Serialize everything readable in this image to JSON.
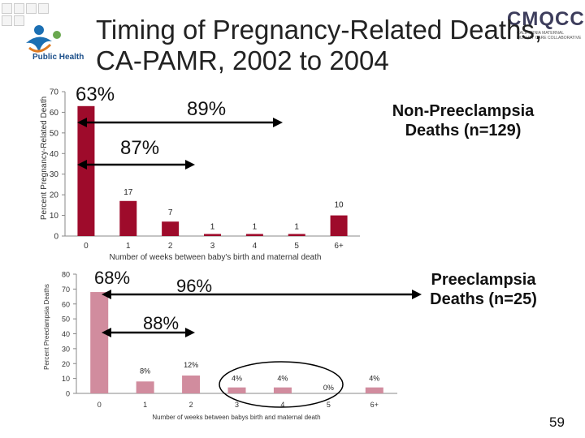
{
  "title": "Timing of Pregnancy-Related Deaths, CA-PAMR, 2002 to 2004",
  "logos": {
    "left_text": "Public Health",
    "right_text": "CMQCC",
    "right_subtext": "CALIFORNIA MATERNAL QUALITY CARE COLLABORATIVE"
  },
  "page_number": "59",
  "colors": {
    "top_bars": "#9e0b2b",
    "bottom_bars": "#d18c9e",
    "ellipse": "#000000"
  },
  "top_labels": {
    "pct_63": "63%",
    "pct_89": "89%",
    "pct_87": "87%",
    "group_title": "Non-Preeclampsia Deaths (n=129)"
  },
  "bottom_labels": {
    "pct_68": "68%",
    "pct_96": "96%",
    "pct_88": "88%",
    "group_title": "Preeclampsia Deaths (n=25)"
  },
  "chart_data": [
    {
      "type": "bar",
      "name": "non-preeclampsia",
      "categories": [
        "0",
        "1",
        "2",
        "3",
        "4",
        "5",
        "6+"
      ],
      "values": [
        63,
        17,
        7,
        1,
        1,
        1,
        10
      ],
      "data_labels": [
        "",
        "17",
        "7",
        "1",
        "1",
        "1",
        "10"
      ],
      "xlabel": "Number of weeks between baby's birth and maternal death",
      "ylabel": "Percent Pregnancy-Related Death",
      "ylim": [
        0,
        70
      ],
      "yticks": [
        0,
        10,
        20,
        30,
        40,
        50,
        60,
        70
      ]
    },
    {
      "type": "bar",
      "name": "preeclampsia",
      "categories": [
        "0",
        "1",
        "2",
        "3",
        "4",
        "5",
        "6+"
      ],
      "values": [
        68,
        8,
        12,
        4,
        4,
        0,
        4
      ],
      "data_labels": [
        "",
        "8%",
        "12%",
        "4%",
        "4%",
        "0%",
        "4%"
      ],
      "xlabel": "Number of weeks between babys birth and maternal death",
      "ylabel": "Percent Preeclampsia Deaths",
      "ylim": [
        0,
        80
      ],
      "yticks": [
        0,
        10,
        20,
        30,
        40,
        50,
        60,
        70,
        80
      ]
    }
  ]
}
